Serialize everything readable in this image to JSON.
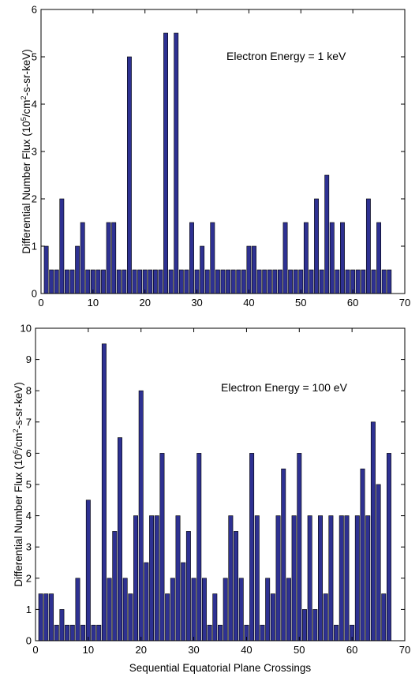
{
  "chart_data": [
    {
      "type": "bar",
      "annotation": "Electron Energy = 1 keV",
      "xlabel": "",
      "ylabel_prefix": "Differential Number Flux (10",
      "ylabel_exp": "5",
      "ylabel_mid": "/cm",
      "ylabel_exp2": "2",
      "ylabel_suffix": "-s-sr-keV)",
      "xlim": [
        0,
        70
      ],
      "ylim": [
        0,
        6
      ],
      "xticks": [
        0,
        10,
        20,
        30,
        40,
        50,
        60,
        70
      ],
      "yticks": [
        0,
        1,
        2,
        3,
        4,
        5,
        6
      ],
      "bar_color": "#2e3192",
      "x": [
        1,
        2,
        3,
        4,
        5,
        6,
        7,
        8,
        9,
        10,
        11,
        12,
        13,
        14,
        15,
        16,
        17,
        18,
        19,
        20,
        21,
        22,
        23,
        24,
        25,
        26,
        27,
        28,
        29,
        30,
        31,
        32,
        33,
        34,
        35,
        36,
        37,
        38,
        39,
        40,
        41,
        42,
        43,
        44,
        45,
        46,
        47,
        48,
        49,
        50,
        51,
        52,
        53,
        54,
        55,
        56,
        57,
        58,
        59,
        60,
        61,
        62,
        63,
        64,
        65,
        66,
        67
      ],
      "values": [
        1,
        0.5,
        0.5,
        2,
        0.5,
        0.5,
        1,
        1.5,
        0.5,
        0.5,
        0.5,
        0.5,
        1.5,
        1.5,
        0.5,
        0.5,
        5,
        0.5,
        0.5,
        0.5,
        0.5,
        0.5,
        0.5,
        5.5,
        0.5,
        5.5,
        0.5,
        0.5,
        1.5,
        0.5,
        1,
        0.5,
        1.5,
        0.5,
        0.5,
        0.5,
        0.5,
        0.5,
        0.5,
        1,
        1,
        0.5,
        0.5,
        0.5,
        0.5,
        0.5,
        1.5,
        0.5,
        0.5,
        0.5,
        1.5,
        0.5,
        2,
        0.5,
        2.5,
        1.5,
        0.5,
        1.5,
        0.5,
        0.5,
        0.5,
        0.5,
        2,
        0.5,
        1.5,
        0.5,
        0.5
      ]
    },
    {
      "type": "bar",
      "annotation": "Electron Energy = 100 eV",
      "xlabel": "Sequential Equatorial Plane Crossings",
      "ylabel_prefix": "Differential Number Flux (10",
      "ylabel_exp": "6",
      "ylabel_mid": "/cm",
      "ylabel_exp2": "2",
      "ylabel_suffix": "-s-sr-keV)",
      "xlim": [
        0,
        70
      ],
      "ylim": [
        0,
        10
      ],
      "xticks": [
        0,
        10,
        20,
        30,
        40,
        50,
        60,
        70
      ],
      "yticks": [
        0,
        1,
        2,
        3,
        4,
        5,
        6,
        7,
        8,
        9,
        10
      ],
      "bar_color": "#2e3192",
      "x": [
        1,
        2,
        3,
        4,
        5,
        6,
        7,
        8,
        9,
        10,
        11,
        12,
        13,
        14,
        15,
        16,
        17,
        18,
        19,
        20,
        21,
        22,
        23,
        24,
        25,
        26,
        27,
        28,
        29,
        30,
        31,
        32,
        33,
        34,
        35,
        36,
        37,
        38,
        39,
        40,
        41,
        42,
        43,
        44,
        45,
        46,
        47,
        48,
        49,
        50,
        51,
        52,
        53,
        54,
        55,
        56,
        57,
        58,
        59,
        60,
        61,
        62,
        63,
        64,
        65,
        66,
        67
      ],
      "values": [
        1.5,
        1.5,
        1.5,
        0.5,
        1,
        0.5,
        0.5,
        2,
        0.5,
        4.5,
        0.5,
        0.5,
        9.5,
        2,
        3.5,
        6.5,
        2,
        1.5,
        4,
        8,
        2.5,
        4,
        4,
        6,
        1.5,
        2,
        4,
        2.5,
        3.5,
        2,
        6,
        2,
        0.5,
        1.5,
        0.5,
        2,
        4,
        3.5,
        2,
        0.5,
        6,
        4,
        0.5,
        2,
        1.5,
        4,
        5.5,
        2,
        4,
        6,
        1,
        4,
        1,
        4,
        1.5,
        4,
        0.5,
        4,
        4,
        0.5,
        4,
        5.5,
        4,
        7,
        5,
        1.5,
        6
      ]
    }
  ]
}
